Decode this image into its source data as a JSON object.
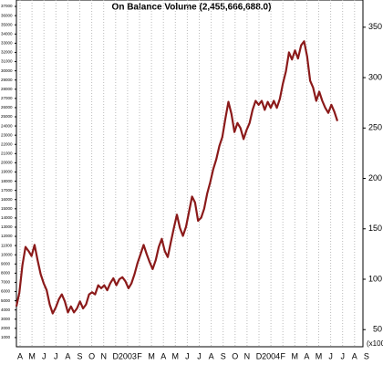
{
  "chart_data": {
    "type": "line",
    "title": "On Balance Volume (2,455,666,688.0)",
    "axis_note": "(x100",
    "x_axis_labels": [
      "A",
      "M",
      "J",
      "J",
      "A",
      "S",
      "O",
      "N",
      "D",
      "2003",
      "F",
      "M",
      "A",
      "M",
      "J",
      "J",
      "A",
      "S",
      "O",
      "N",
      "D",
      "2004",
      "F",
      "M",
      "A",
      "M",
      "J",
      "J",
      "A",
      "S"
    ],
    "series": [
      {
        "name": "On Balance Volume",
        "color": "#8b1a1a",
        "values": [
          73,
          87,
          114,
          132,
          128,
          123,
          134,
          119,
          105,
          96,
          89,
          75,
          66,
          72,
          80,
          85,
          78,
          67,
          73,
          67,
          71,
          78,
          71,
          75,
          85,
          87,
          85,
          94,
          91,
          94,
          89,
          96,
          101,
          94,
          100,
          102,
          98,
          91,
          96,
          105,
          116,
          125,
          134,
          125,
          117,
          110,
          119,
          132,
          140,
          128,
          122,
          137,
          151,
          164,
          151,
          143,
          152,
          167,
          182,
          176,
          158,
          161,
          170,
          185,
          196,
          209,
          219,
          232,
          241,
          259,
          276,
          264,
          246,
          255,
          250,
          239,
          248,
          255,
          268,
          277,
          273,
          277,
          268,
          276,
          270,
          277,
          270,
          279,
          294,
          306,
          325,
          318,
          327,
          319,
          332,
          336,
          321,
          297,
          290,
          277,
          286,
          277,
          270,
          265,
          273,
          266,
          257
        ]
      }
    ],
    "ylim": [
      33,
      377
    ],
    "yticks": [
      50,
      100,
      150,
      200,
      250,
      300,
      350
    ],
    "y2lim": [
      0,
      37700
    ],
    "y2ticks": [
      1000,
      2000,
      3000,
      4000,
      5000,
      6000,
      7000,
      8000,
      9000,
      10000,
      11000,
      12000,
      13000,
      14000,
      15000,
      16000,
      17000,
      18000,
      19000,
      20000,
      21000,
      22000,
      23000,
      24000,
      25000,
      26000,
      27000,
      28000,
      29000,
      30000,
      31000,
      32000,
      33000,
      34000,
      35000,
      36000,
      37000
    ],
    "grid": true
  }
}
